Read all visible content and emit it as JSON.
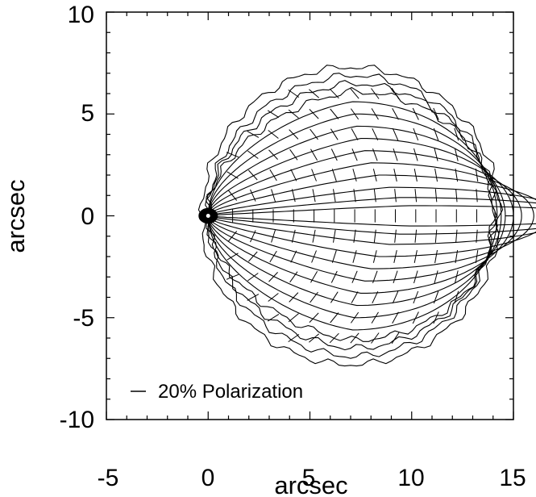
{
  "chart_data": {
    "type": "contour",
    "title": "",
    "xlabel": "arcsec",
    "ylabel": "arcsec",
    "xlim": [
      -5,
      15
    ],
    "ylim": [
      -10,
      10
    ],
    "xticks": [
      "-5",
      "0",
      "5",
      "10",
      "15"
    ],
    "yticks": [
      "10",
      "5",
      "0",
      "-5",
      "-10"
    ],
    "xtick_values": [
      -5,
      0,
      5,
      10,
      15
    ],
    "ytick_values": [
      10,
      5,
      0,
      -5,
      -10
    ],
    "grid": false,
    "source_center": [
      0,
      0
    ],
    "contour_radii_arcsec": [
      7.3,
      6.9,
      6.5,
      6.1,
      5.6,
      5.0,
      4.4,
      3.8,
      3.2,
      2.6,
      2.0,
      1.4,
      0.9,
      0.5
    ],
    "contour_center_x": [
      7.0,
      7.0,
      7.0,
      7.05,
      7.1,
      7.2,
      7.3,
      7.5,
      7.7,
      8.0,
      8.4,
      8.9,
      9.4,
      9.9
    ],
    "outer_disc_extent": {
      "x": [
        -0.3,
        14.3
      ],
      "y": [
        -7.3,
        7.3
      ]
    },
    "vector_field": {
      "description": "polarization vectors, roughly perpendicular to radial direction from source",
      "x_values": [
        1.2,
        2.2,
        3.2,
        4.2,
        5.2,
        6.2,
        7.2,
        8.2,
        9.2,
        10.2,
        11.2,
        12.2,
        13.2
      ],
      "y_values": [
        -6,
        -5,
        -4,
        -3,
        -2,
        -1,
        0,
        1,
        2,
        3,
        4,
        5,
        6
      ],
      "scale_percent_per_legend": 20
    },
    "legend": {
      "position": "bottom-left",
      "label": "20% Polarization"
    }
  }
}
